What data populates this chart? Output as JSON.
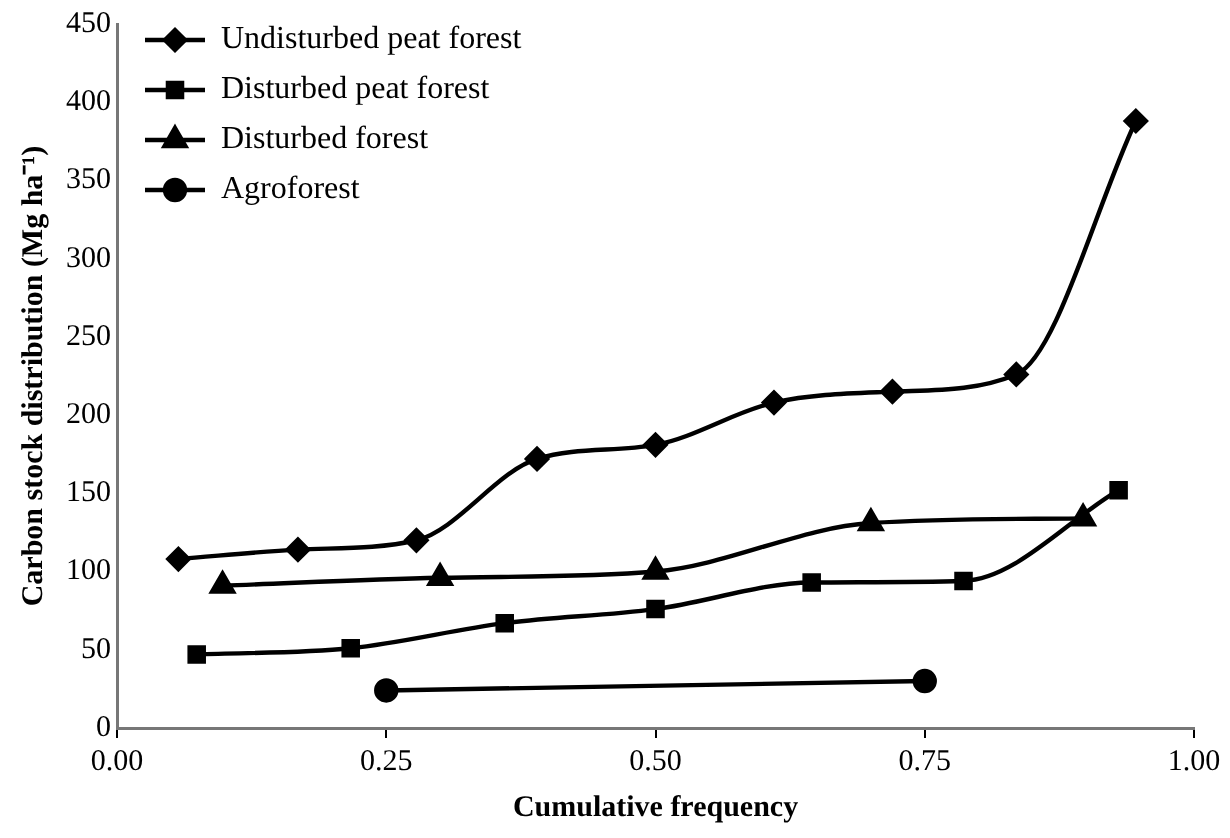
{
  "chart_data": {
    "type": "line",
    "xlabel": "Cumulative frequency",
    "ylabel": "Carbon stock distribution (Mg ha⁻¹)",
    "xlim": [
      0,
      1
    ],
    "xticks": [
      {
        "value": 0,
        "label": "0.00"
      },
      {
        "value": 0.25,
        "label": "0.25"
      },
      {
        "value": 0.5,
        "label": "0.50"
      },
      {
        "value": 0.75,
        "label": "0.75"
      },
      {
        "value": 1,
        "label": "1.00"
      }
    ],
    "ylim": [
      0,
      450
    ],
    "yticks": [
      0,
      50,
      100,
      150,
      200,
      250,
      300,
      350,
      400,
      450
    ],
    "grid": false,
    "legend": "top left",
    "series": [
      {
        "name": "Undisturbed peat forest",
        "color": "#000000",
        "marker": "diamond",
        "x": [
          0.057,
          0.168,
          0.278,
          0.39,
          0.5,
          0.61,
          0.72,
          0.835,
          0.946
        ],
        "values": [
          108,
          114,
          120,
          172,
          181,
          208,
          215,
          226,
          388
        ]
      },
      {
        "name": "Disturbed peat forest",
        "color": "#000000",
        "marker": "square",
        "x": [
          0.074,
          0.217,
          0.36,
          0.5,
          0.645,
          0.786,
          0.93
        ],
        "values": [
          47,
          51,
          67,
          76,
          93,
          94,
          152
        ]
      },
      {
        "name": "Disturbed forest",
        "color": "#000000",
        "marker": "triangle",
        "x": [
          0.098,
          0.3,
          0.5,
          0.7,
          0.897
        ],
        "values": [
          91,
          96,
          100,
          131,
          134
        ]
      },
      {
        "name": "Agroforest",
        "color": "#000000",
        "marker": "circle",
        "x": [
          0.25,
          0.75
        ],
        "values": [
          24,
          30
        ]
      }
    ]
  }
}
